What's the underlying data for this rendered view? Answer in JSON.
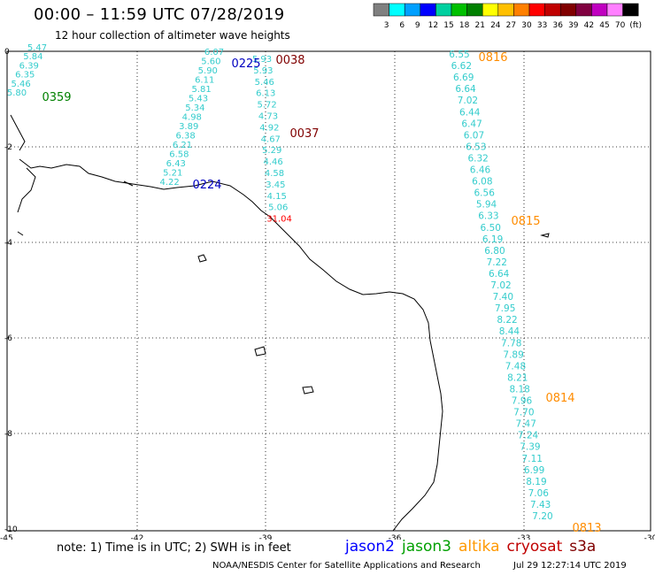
{
  "header": {
    "title": "00:00 – 11:59 UTC 07/28/2019",
    "subtitle": "12 hour collection of altimeter wave heights"
  },
  "color_scale": {
    "labels": [
      "3",
      "6",
      "9",
      "12",
      "15",
      "18",
      "21",
      "24",
      "27",
      "30",
      "33",
      "36",
      "39",
      "42",
      "45",
      "70",
      "(ft)"
    ],
    "colors": [
      "#808080",
      "#00ffff",
      "#00a0ff",
      "#0000ff",
      "#00d0a0",
      "#00c000",
      "#008000",
      "#ffff00",
      "#ffc000",
      "#ff8000",
      "#ff0000",
      "#c00000",
      "#800000",
      "#800040",
      "#c000c0",
      "#ff80ff",
      "#000000"
    ]
  },
  "axes": {
    "x_ticks": [
      "-45",
      "-42",
      "-39",
      "-36",
      "-33",
      "-30"
    ],
    "y_ticks": [
      "0",
      "-2",
      "-4",
      "-6",
      "-8",
      "-10"
    ]
  },
  "tracks": [
    {
      "satellite": "cryosat s3a",
      "time": "0359",
      "time_color": "#008000",
      "values": [
        "5.47",
        "5.84",
        "6.39",
        "6.35",
        "5.46",
        "5.80"
      ]
    },
    {
      "satellite": "jason2",
      "time": "0225",
      "end_time": "0224",
      "time_color": "#0000c0",
      "values": [
        "6.07",
        "5.60",
        "5.90",
        "6.11",
        "5.81",
        "5.43",
        "5.34",
        "4.98",
        "3.89",
        "6.38",
        "6.21",
        "6.58",
        "6.43",
        "5.21",
        "4.22"
      ]
    },
    {
      "satellite": "cryosat",
      "time": "0038",
      "end_time": "0037",
      "time_color": "#800000",
      "values": [
        "5.93",
        "5.93",
        "5.46",
        "6.13",
        "5.72",
        "4.73",
        "4.92",
        "4.67",
        "5.29",
        "4.46",
        "4.58",
        "3.45",
        "4.15",
        "5.06",
        "31.04"
      ]
    },
    {
      "satellite": "altika",
      "time": "0816",
      "mid_times": [
        "0815",
        "0814"
      ],
      "end_time": "0813",
      "time_color": "#ff8c00",
      "values": [
        "6.55",
        "6.62",
        "6.69",
        "6.64",
        "7.02",
        "6.44",
        "6.47",
        "6.07",
        "6.53",
        "6.32",
        "6.46",
        "6.08",
        "6.56",
        "5.94",
        "6.33",
        "6.50",
        "6.19",
        "6.80",
        "7.22",
        "6.64",
        "7.02",
        "7.40",
        "7.95",
        "8.22",
        "8.44",
        "7.78",
        "7.89",
        "7.48",
        "8.21",
        "8.18",
        "7.96",
        "7.70",
        "7.47",
        "7.24",
        "7.39",
        "7.11",
        "6.99",
        "8.19",
        "7.06",
        "7.43",
        "7.20"
      ]
    }
  ],
  "footer_note": "note: 1) Time is in UTC; 2) SWH is in feet",
  "legend": [
    {
      "label": "jason2",
      "color": "#0000ff"
    },
    {
      "label": "jason3",
      "color": "#00a000"
    },
    {
      "label": "altika",
      "color": "#ff9900"
    },
    {
      "label": "cryosat",
      "color": "#c00000"
    },
    {
      "label": "s3a",
      "color": "#800000"
    }
  ],
  "credit": "NOAA/NESDIS Center for Satellite Applications and Research",
  "timestamp": "Jul 29 12:27:14 UTC 2019"
}
